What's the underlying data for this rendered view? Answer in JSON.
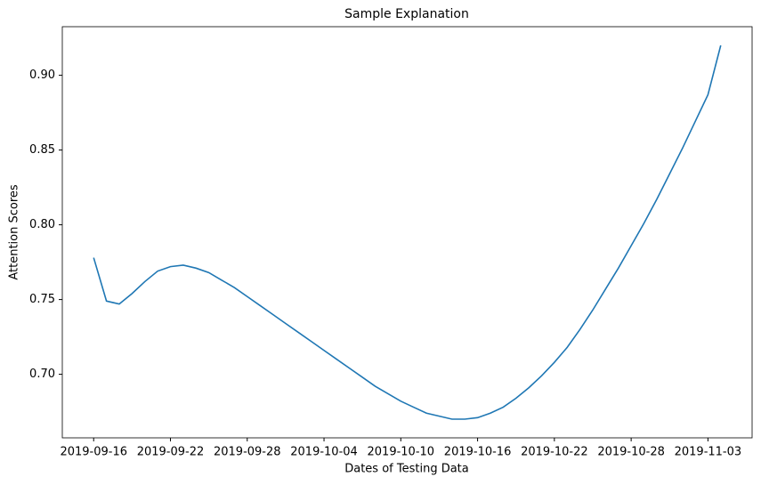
{
  "chart_data": {
    "type": "line",
    "title": "Sample Explanation",
    "x_label": "Dates of Testing Data",
    "y_label": "Attention Scores",
    "color": "#1f77b4",
    "x": [
      "2019-09-16",
      "2019-09-17",
      "2019-09-18",
      "2019-09-19",
      "2019-09-20",
      "2019-09-21",
      "2019-09-22",
      "2019-09-23",
      "2019-09-24",
      "2019-09-25",
      "2019-09-26",
      "2019-09-27",
      "2019-09-28",
      "2019-09-29",
      "2019-09-30",
      "2019-10-01",
      "2019-10-02",
      "2019-10-03",
      "2019-10-04",
      "2019-10-05",
      "2019-10-06",
      "2019-10-07",
      "2019-10-08",
      "2019-10-09",
      "2019-10-10",
      "2019-10-11",
      "2019-10-12",
      "2019-10-13",
      "2019-10-14",
      "2019-10-15",
      "2019-10-16",
      "2019-10-17",
      "2019-10-18",
      "2019-10-19",
      "2019-10-20",
      "2019-10-21",
      "2019-10-22",
      "2019-10-23",
      "2019-10-24",
      "2019-10-25",
      "2019-10-26",
      "2019-10-27",
      "2019-10-28",
      "2019-10-29",
      "2019-10-30",
      "2019-10-31",
      "2019-11-01",
      "2019-11-02",
      "2019-11-03",
      "2019-11-04"
    ],
    "values": [
      0.778,
      0.749,
      0.747,
      0.754,
      0.762,
      0.769,
      0.772,
      0.773,
      0.771,
      0.768,
      0.763,
      0.758,
      0.752,
      0.746,
      0.74,
      0.734,
      0.728,
      0.722,
      0.716,
      0.71,
      0.704,
      0.698,
      0.692,
      0.687,
      0.682,
      0.678,
      0.674,
      0.672,
      0.67,
      0.67,
      0.671,
      0.674,
      0.678,
      0.684,
      0.691,
      0.699,
      0.708,
      0.718,
      0.73,
      0.743,
      0.757,
      0.771,
      0.786,
      0.801,
      0.817,
      0.834,
      0.851,
      0.869,
      0.887,
      0.92
    ],
    "xlim": [
      "2019-09-13T13:12:00Z",
      "2019-11-06T10:48:00Z"
    ],
    "xticks": [
      "2019-09-16",
      "2019-09-22",
      "2019-09-28",
      "2019-10-04",
      "2019-10-10",
      "2019-10-16",
      "2019-10-22",
      "2019-10-28",
      "2019-11-03"
    ],
    "ylim": [
      0.6575,
      0.9325
    ],
    "yticks": [
      {
        "value": 0.7,
        "label": "0.70"
      },
      {
        "value": 0.75,
        "label": "0.75"
      },
      {
        "value": 0.8,
        "label": "0.80"
      },
      {
        "value": 0.85,
        "label": "0.85"
      },
      {
        "value": 0.9,
        "label": "0.90"
      }
    ],
    "grid": false
  }
}
